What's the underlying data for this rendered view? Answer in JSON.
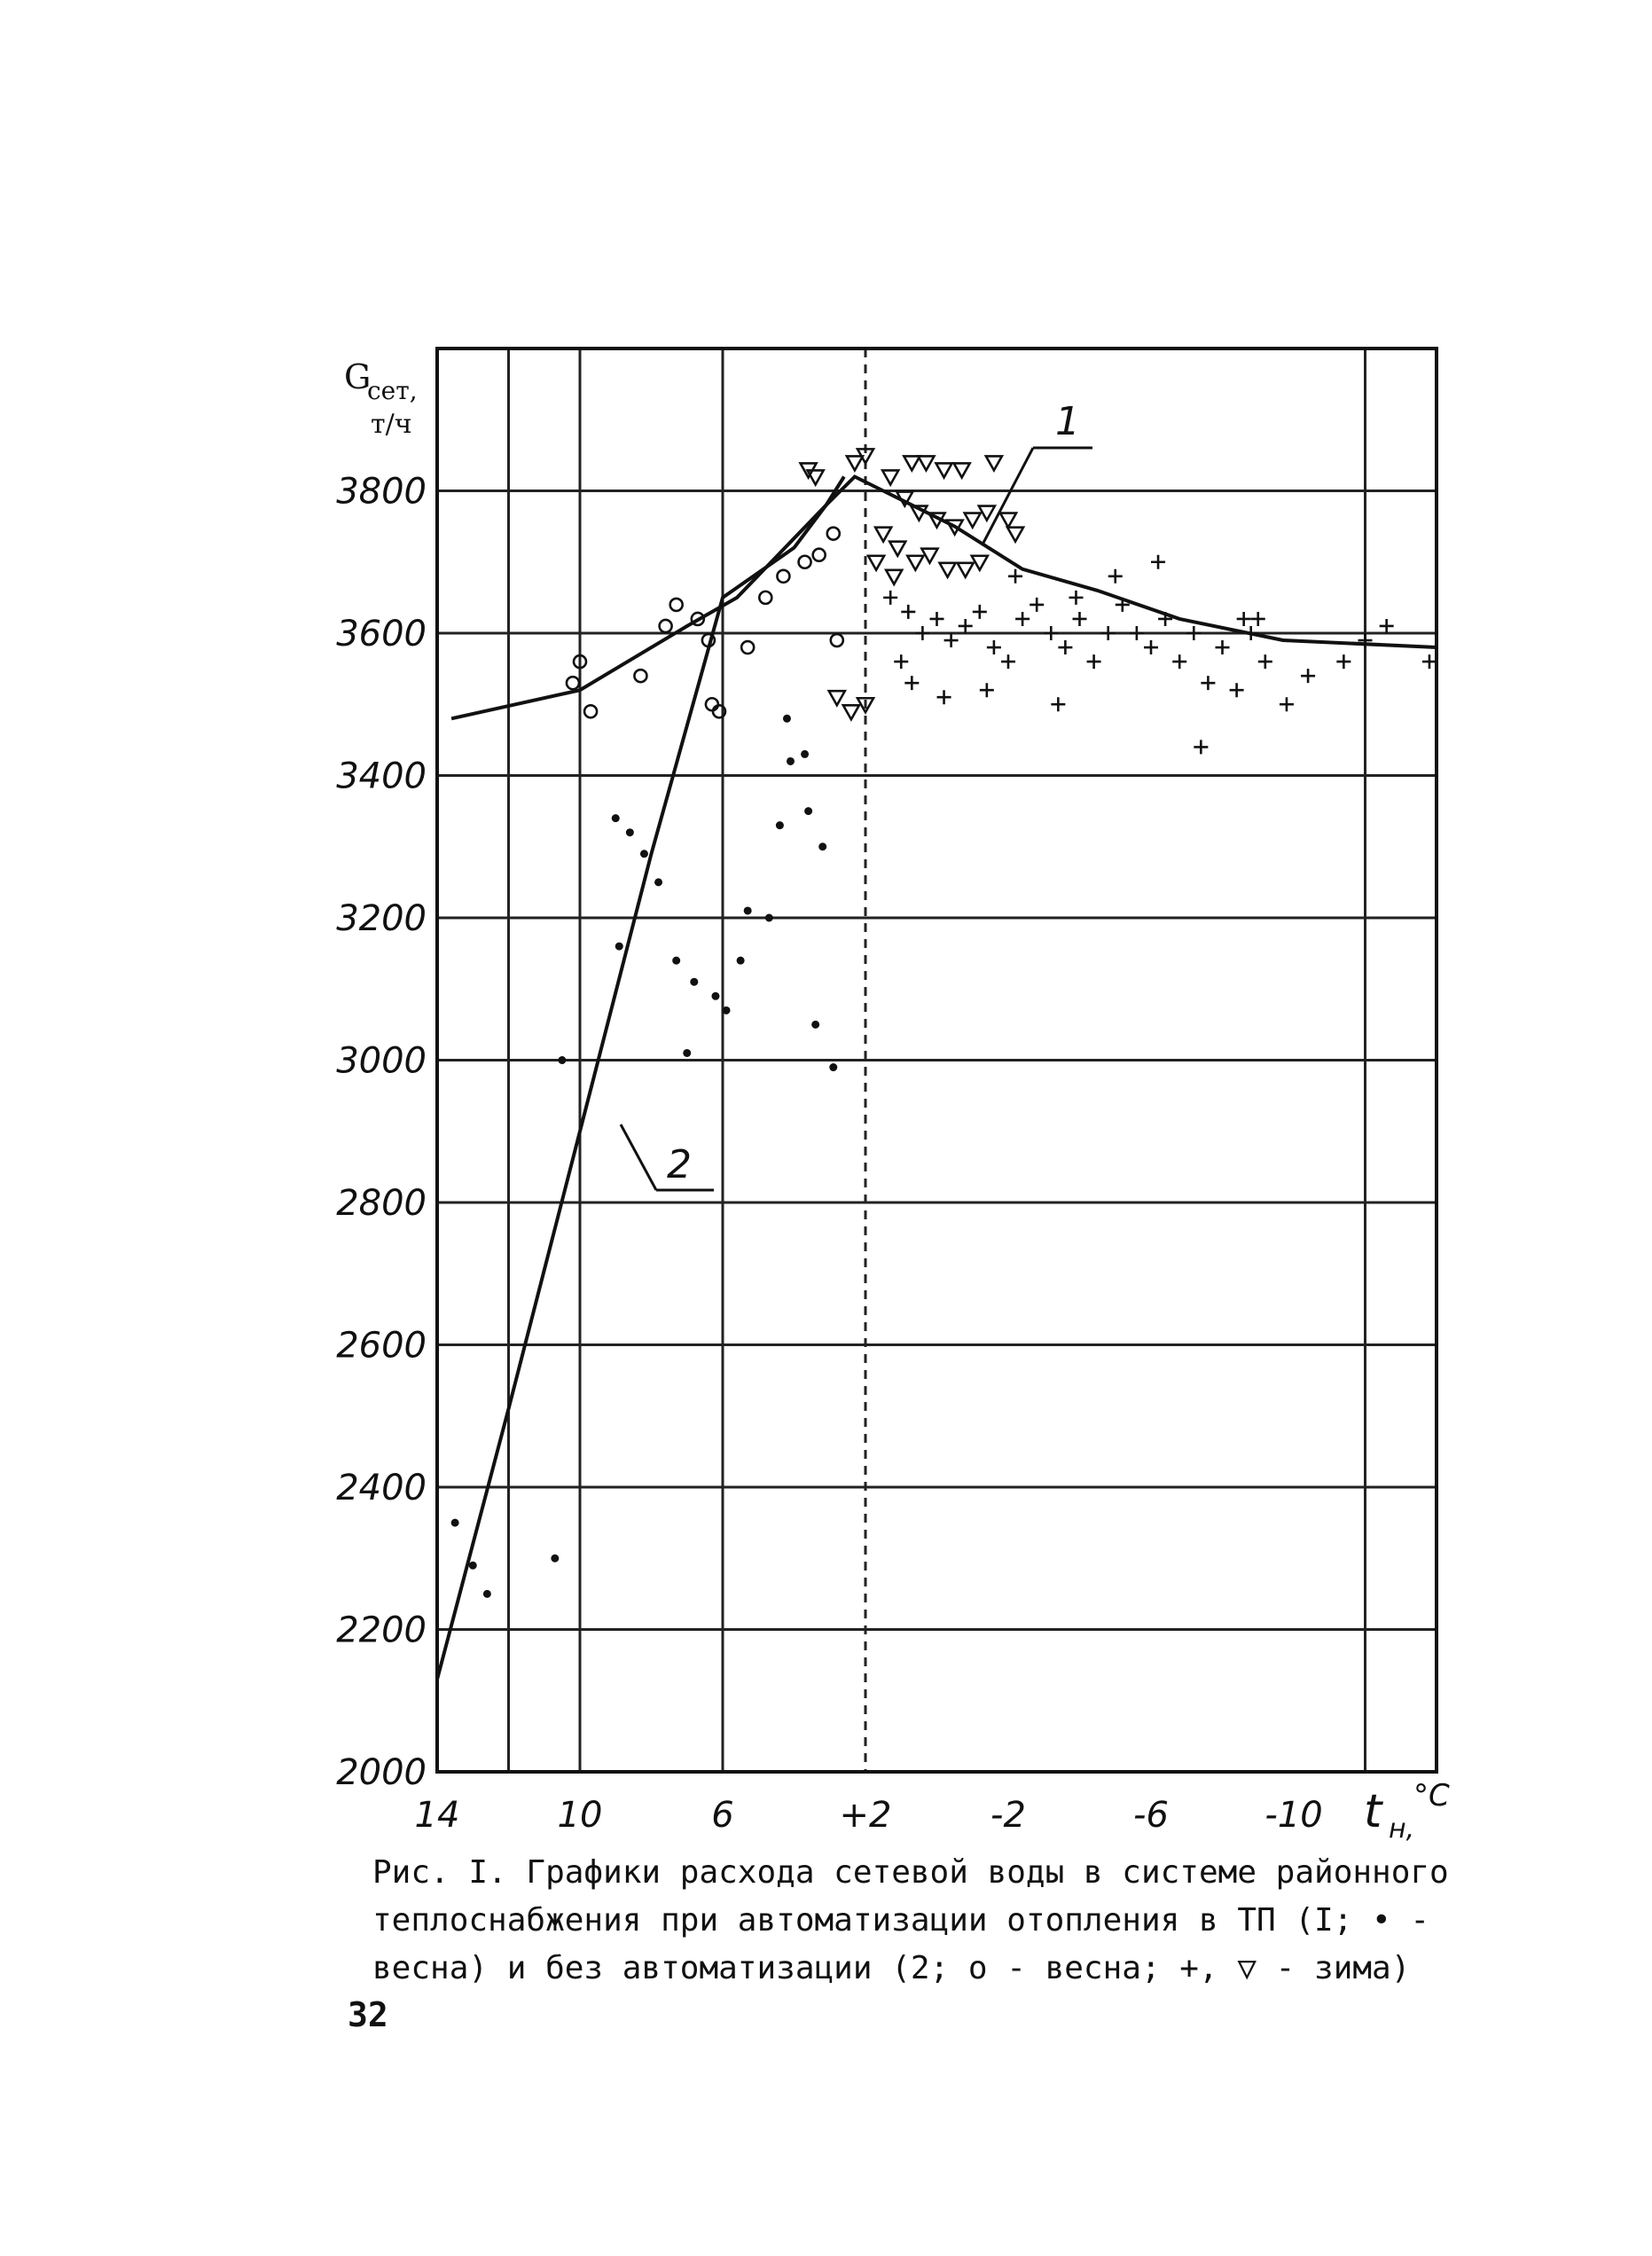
{
  "chart_data": {
    "type": "scatter",
    "ylabel": "G",
    "ylabel_sub": "сет,",
    "yunit": "т/ч",
    "xlabel": "t",
    "xlabel_sub": "н,",
    "xunit": "°C",
    "x_tick_labels": [
      "14",
      "10",
      "6",
      "+2",
      "-2",
      "-6",
      "-10"
    ],
    "x_ticks": [
      14,
      10,
      6,
      2,
      -2,
      -6,
      -10
    ],
    "y_ticks": [
      2000,
      2200,
      2400,
      2600,
      2800,
      3000,
      3200,
      3400,
      3600,
      3800
    ],
    "y_tick_labels": [
      "2000",
      "2200",
      "2400",
      "2600",
      "2800",
      "3000",
      "3200",
      "3400",
      "3600",
      "3800"
    ],
    "xlim": [
      14,
      -14
    ],
    "ylim": [
      2000,
      4000
    ],
    "grid": true,
    "series": [
      {
        "name": "1",
        "kind": "line",
        "x": [
          13.6,
          10,
          7,
          5.6,
          3.1,
          2.3,
          1.5,
          -0.5,
          -2.4,
          -4.5,
          -6.8,
          -9.7,
          -14
        ],
        "y": [
          3480,
          3520,
          3610,
          3650,
          3780,
          3820,
          3800,
          3750,
          3690,
          3660,
          3620,
          3590,
          3580
        ]
      },
      {
        "name": "2",
        "kind": "line",
        "x": [
          14,
          12,
          10,
          8,
          6,
          4,
          3.1,
          2.6
        ],
        "y": [
          2130,
          2510,
          2900,
          3290,
          3650,
          3720,
          3780,
          3820
        ]
      },
      {
        "name": "весна (1)",
        "marker": "dot",
        "points": [
          [
            10.5,
            3000
          ],
          [
            9.0,
            3340
          ],
          [
            8.9,
            3160
          ],
          [
            8.6,
            3320
          ],
          [
            8.2,
            3290
          ],
          [
            7.8,
            3250
          ],
          [
            7.3,
            3140
          ],
          [
            7.0,
            3010
          ],
          [
            6.8,
            3110
          ],
          [
            6.2,
            3090
          ],
          [
            5.9,
            3070
          ],
          [
            5.5,
            3140
          ],
          [
            5.3,
            3210
          ],
          [
            4.7,
            3200
          ],
          [
            4.4,
            3330
          ],
          [
            4.2,
            3480
          ],
          [
            4.1,
            3420
          ],
          [
            3.7,
            3430
          ],
          [
            3.6,
            3350
          ],
          [
            3.2,
            3300
          ],
          [
            3.4,
            3050
          ],
          [
            2.9,
            2990
          ],
          [
            13.5,
            2350
          ],
          [
            13.0,
            2290
          ],
          [
            12.6,
            2250
          ],
          [
            10.7,
            2300
          ]
        ]
      },
      {
        "name": "весна (2)",
        "marker": "circle",
        "points": [
          [
            10.2,
            3530
          ],
          [
            10.0,
            3560
          ],
          [
            9.7,
            3490
          ],
          [
            8.3,
            3540
          ],
          [
            7.6,
            3610
          ],
          [
            7.3,
            3640
          ],
          [
            6.7,
            3620
          ],
          [
            6.4,
            3590
          ],
          [
            6.3,
            3500
          ],
          [
            6.1,
            3490
          ],
          [
            5.3,
            3580
          ],
          [
            4.8,
            3650
          ],
          [
            4.3,
            3680
          ],
          [
            3.7,
            3700
          ],
          [
            3.3,
            3710
          ],
          [
            2.9,
            3740
          ],
          [
            2.8,
            3590
          ]
        ]
      },
      {
        "name": "зима (+)",
        "marker": "plus",
        "points": [
          [
            1.3,
            3650
          ],
          [
            0.8,
            3630
          ],
          [
            0.4,
            3600
          ],
          [
            0.0,
            3620
          ],
          [
            -0.4,
            3590
          ],
          [
            -0.8,
            3610
          ],
          [
            -1.2,
            3630
          ],
          [
            -1.6,
            3580
          ],
          [
            -2.0,
            3560
          ],
          [
            -2.4,
            3620
          ],
          [
            -2.8,
            3640
          ],
          [
            -3.2,
            3600
          ],
          [
            -3.6,
            3580
          ],
          [
            -4.0,
            3620
          ],
          [
            -4.4,
            3560
          ],
          [
            -4.8,
            3600
          ],
          [
            -5.2,
            3640
          ],
          [
            -5.6,
            3600
          ],
          [
            -6.0,
            3580
          ],
          [
            -6.4,
            3620
          ],
          [
            -6.8,
            3560
          ],
          [
            -7.2,
            3600
          ],
          [
            -7.6,
            3530
          ],
          [
            -8.0,
            3580
          ],
          [
            -8.4,
            3520
          ],
          [
            -8.8,
            3600
          ],
          [
            -9.2,
            3560
          ],
          [
            -9.8,
            3500
          ],
          [
            -10.4,
            3540
          ],
          [
            -11.4,
            3560
          ],
          [
            -12.0,
            3590
          ],
          [
            -12.6,
            3610
          ],
          [
            -13.8,
            3560
          ],
          [
            0.7,
            3530
          ],
          [
            -1.4,
            3520
          ],
          [
            -3.4,
            3500
          ],
          [
            -5.0,
            3680
          ],
          [
            -6.2,
            3700
          ],
          [
            -7.4,
            3440
          ],
          [
            -8.6,
            3620
          ],
          [
            1.0,
            3560
          ],
          [
            -0.2,
            3510
          ],
          [
            -2.2,
            3680
          ],
          [
            -3.9,
            3650
          ],
          [
            -9.0,
            3620
          ]
        ]
      },
      {
        "name": "зима (▽)",
        "marker": "triangle",
        "points": [
          [
            3.6,
            3830
          ],
          [
            3.4,
            3820
          ],
          [
            2.3,
            3840
          ],
          [
            2.0,
            3850
          ],
          [
            1.3,
            3820
          ],
          [
            0.7,
            3840
          ],
          [
            0.3,
            3840
          ],
          [
            -0.2,
            3830
          ],
          [
            -0.7,
            3830
          ],
          [
            -1.6,
            3840
          ],
          [
            0.9,
            3790
          ],
          [
            0.5,
            3770
          ],
          [
            0.0,
            3760
          ],
          [
            -0.5,
            3750
          ],
          [
            -1.0,
            3760
          ],
          [
            -1.4,
            3770
          ],
          [
            -2.2,
            3740
          ],
          [
            1.5,
            3740
          ],
          [
            1.1,
            3720
          ],
          [
            0.6,
            3700
          ],
          [
            0.2,
            3710
          ],
          [
            -0.3,
            3690
          ],
          [
            2.8,
            3510
          ],
          [
            2.4,
            3490
          ],
          [
            2.0,
            3500
          ],
          [
            1.7,
            3700
          ],
          [
            1.2,
            3680
          ],
          [
            -0.8,
            3690
          ],
          [
            -1.2,
            3700
          ],
          [
            -2.0,
            3760
          ]
        ]
      }
    ],
    "callouts": [
      "1",
      "2"
    ]
  },
  "caption": {
    "lines": [
      "Рис. I. Графики расхода сетевой воды в системе районного",
      "теплоснабжения при автоматизации отопления в ТП (I; • -",
      "весна) и без автоматизации (2; о - весна; +, ▽ - зима)"
    ]
  },
  "page_number": "32"
}
